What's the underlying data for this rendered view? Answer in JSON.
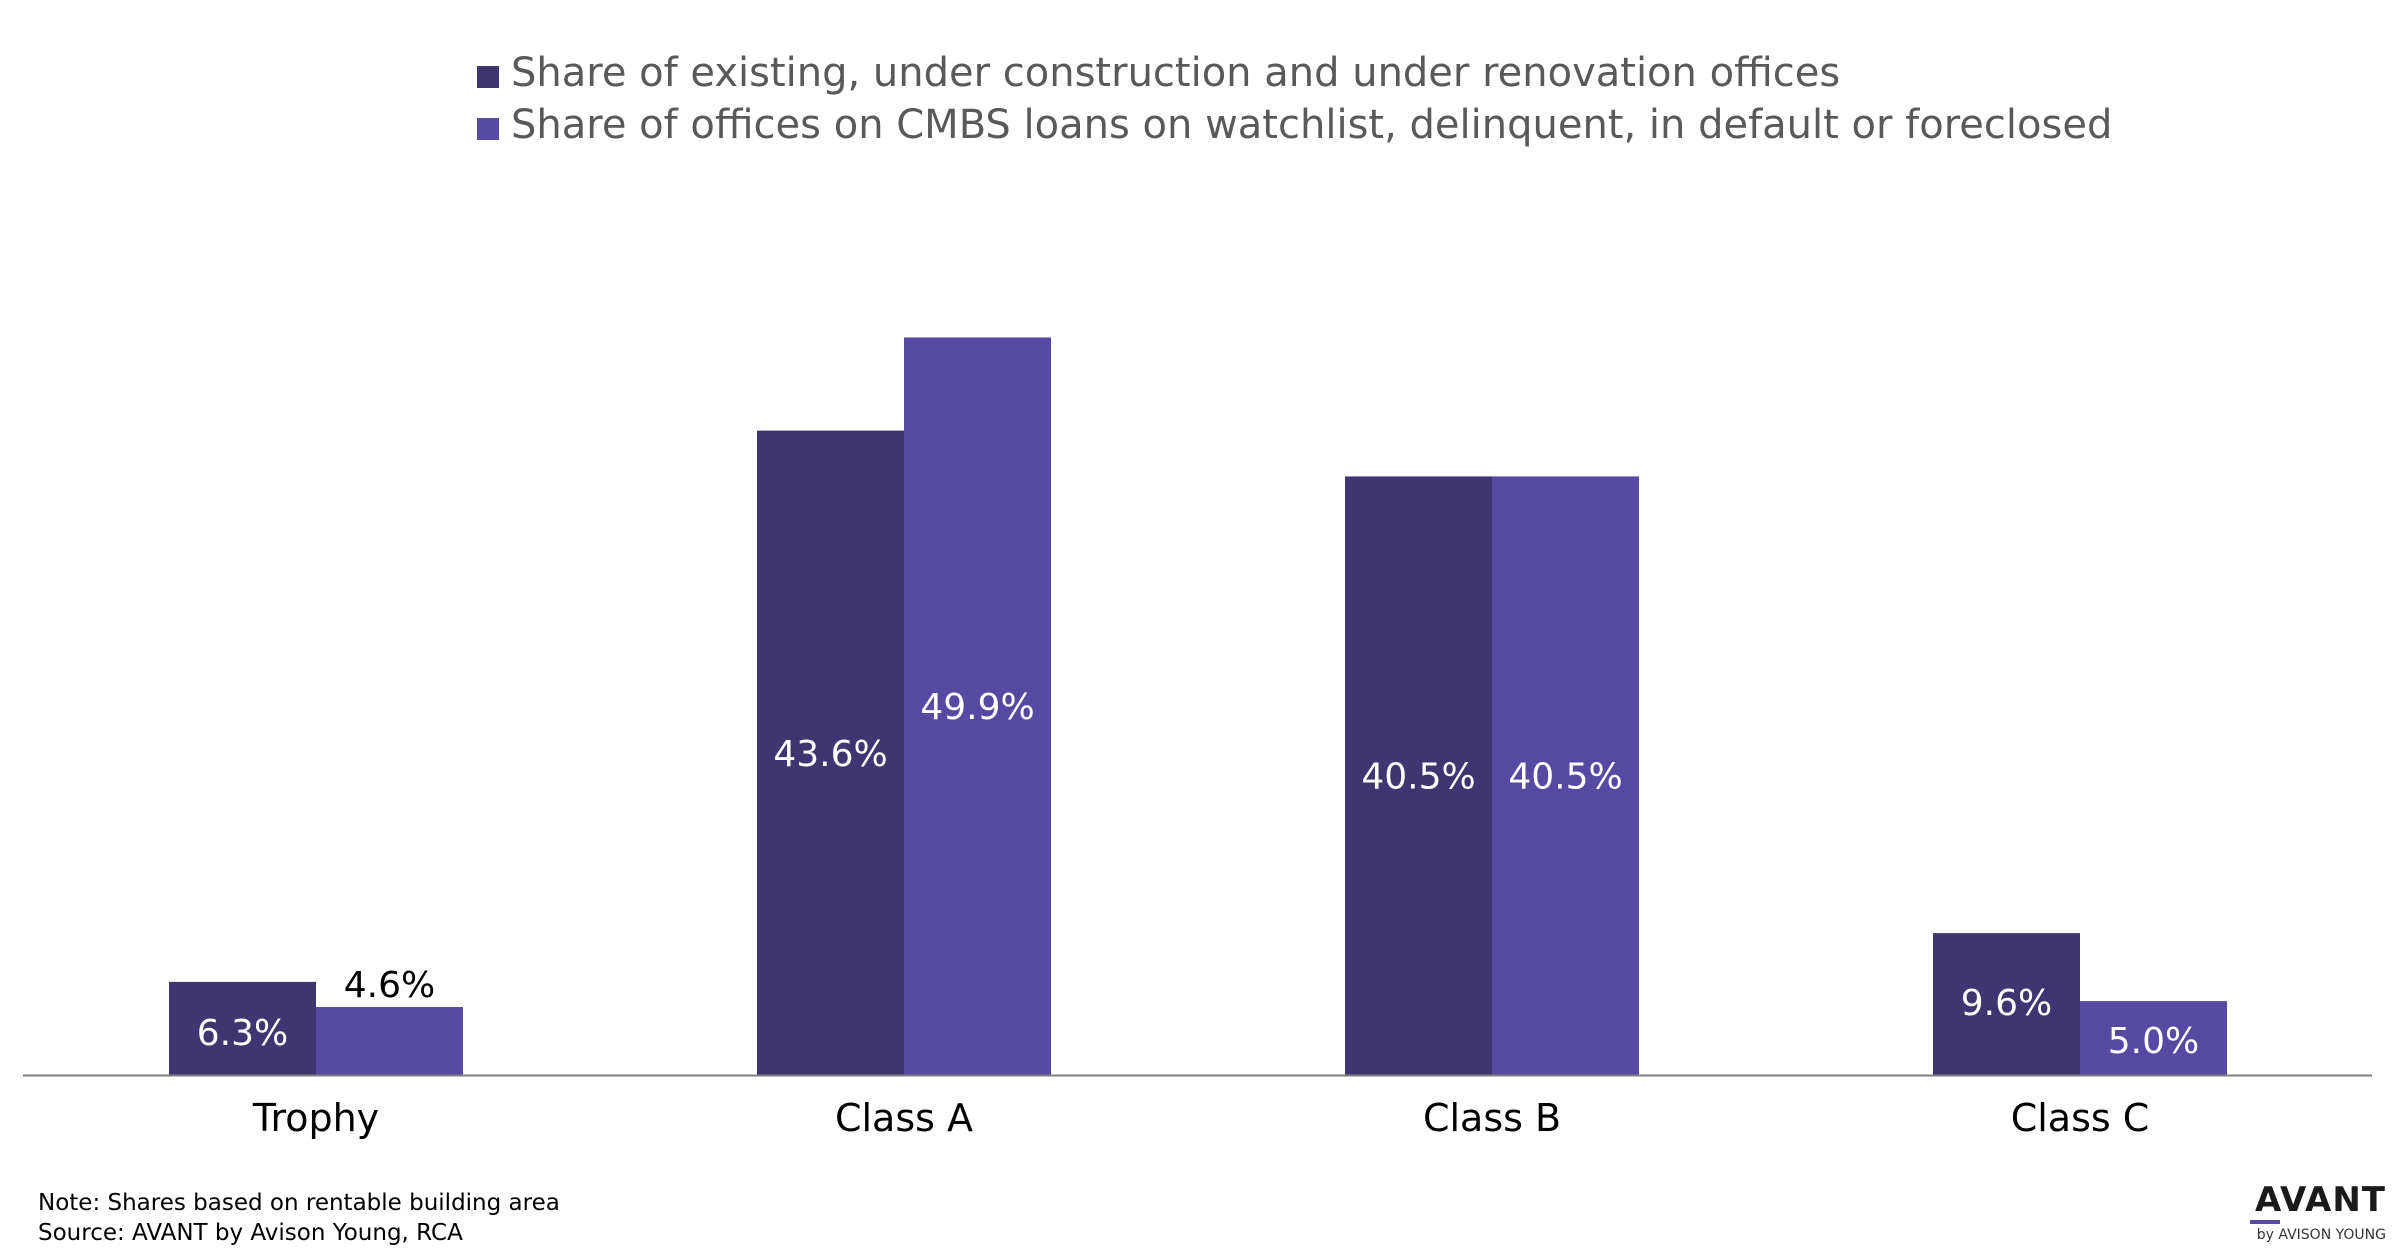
{
  "chart_data": {
    "type": "bar",
    "categories": [
      "Trophy",
      "Class A",
      "Class B",
      "Class C"
    ],
    "series": [
      {
        "name": "Share of existing, under construction and under renovation offices",
        "values": [
          6.3,
          43.6,
          40.5,
          9.6
        ],
        "labels": [
          "6.3%",
          "43.6%",
          "40.5%",
          "9.6%"
        ],
        "color": "#3f3570"
      },
      {
        "name": "Share of offices on CMBS loans on watchlist, delinquent, in default or foreclosed",
        "values": [
          4.6,
          49.9,
          40.5,
          5.0
        ],
        "labels": [
          "4.6%",
          "49.9%",
          "40.5%",
          "5.0%"
        ],
        "color": "#5549a2"
      }
    ],
    "ylim": [
      0,
      50
    ],
    "grid": false,
    "legend_position": "top",
    "axis_color": "#7f7f7f"
  },
  "footer": {
    "note": "Note: Shares based on rentable building area",
    "source": "Source: AVANT by Avison Young, RCA"
  },
  "logo": {
    "main": "AVANT",
    "sub": "by AVISON YOUNG"
  }
}
